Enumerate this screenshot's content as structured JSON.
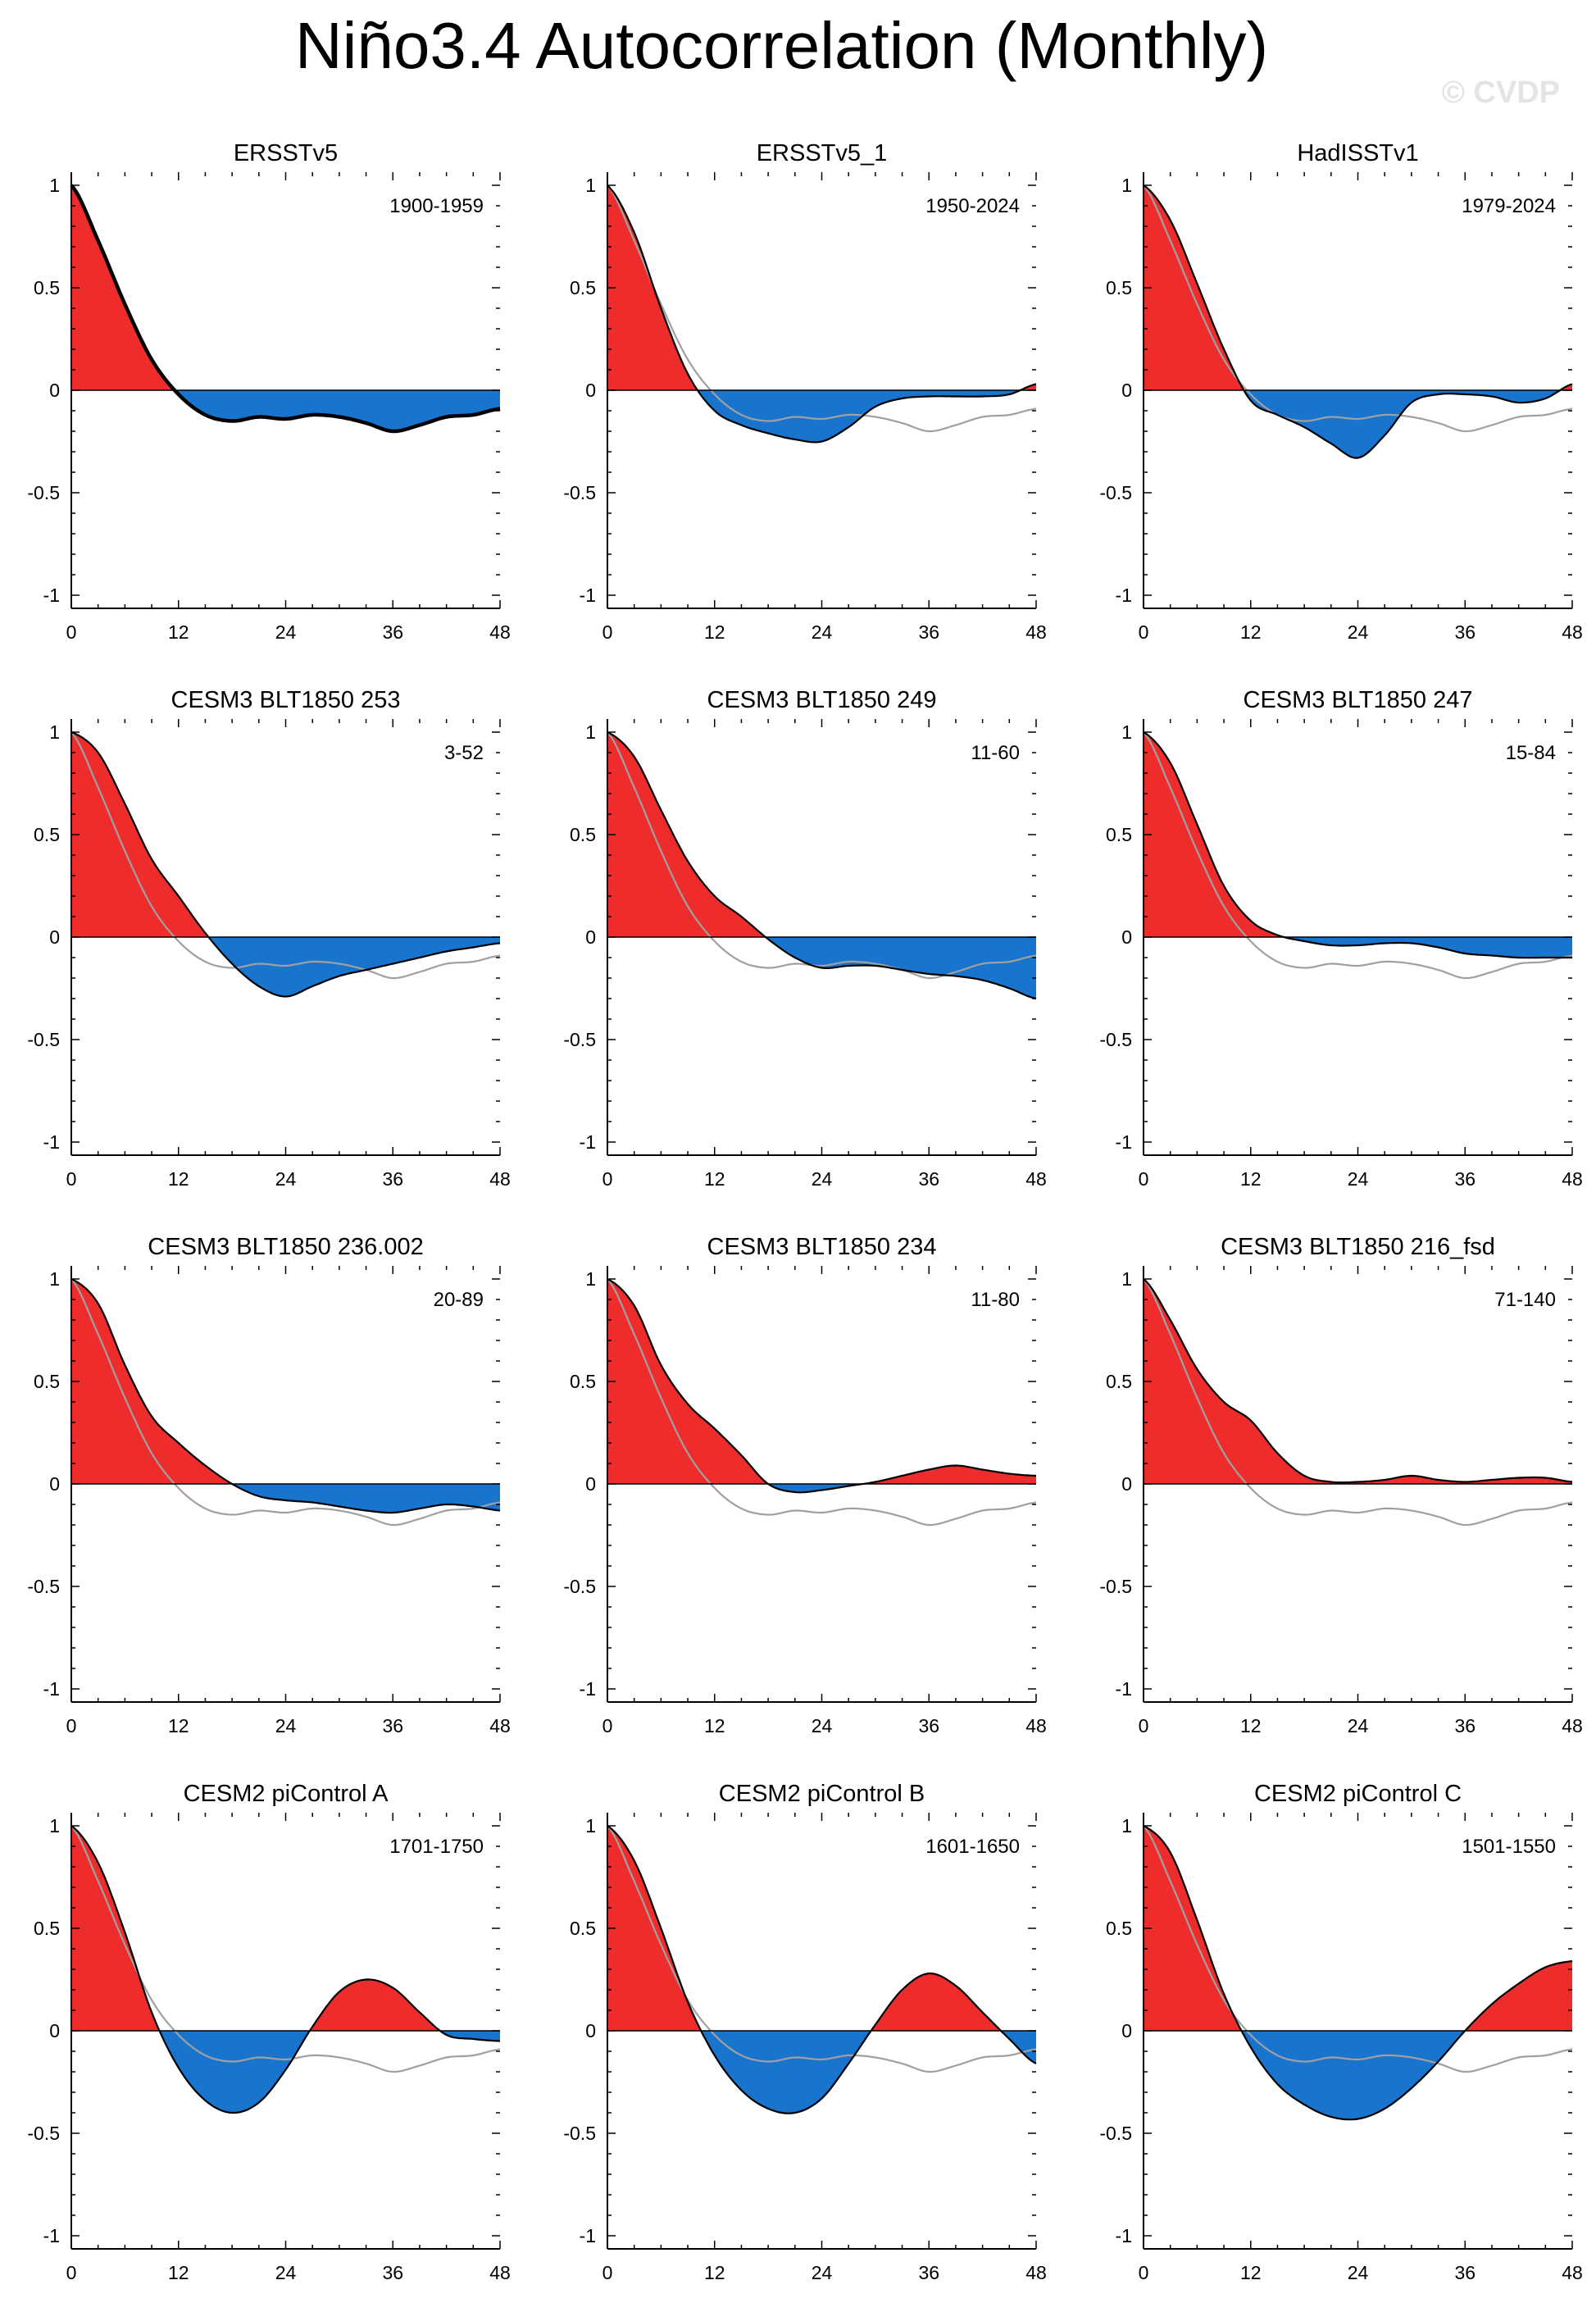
{
  "page": {
    "title": "Niño3.4 Autocorrelation (Monthly)",
    "watermark": "© CVDP"
  },
  "colors": {
    "positive_fill": "#ee2c2c",
    "negative_fill": "#1874cd",
    "line": "#000000",
    "reference_line": "#a0a0a0"
  },
  "axes": {
    "x_ticks": [
      0,
      12,
      24,
      36,
      48
    ],
    "y_ticks": [
      1,
      0.5,
      0,
      -0.5,
      -1
    ],
    "y_tick_labels": [
      "1",
      "0.5",
      "0",
      "-0.5",
      "-1"
    ],
    "xlim": [
      0,
      48
    ],
    "ylim": [
      -1,
      1
    ]
  },
  "chart_data": {
    "type": "area",
    "x": [
      0,
      3,
      6,
      9,
      12,
      15,
      18,
      21,
      24,
      27,
      30,
      33,
      36,
      39,
      42,
      45,
      48
    ],
    "reference": {
      "name": "ERSSTv5",
      "values": [
        1.0,
        0.73,
        0.42,
        0.15,
        -0.02,
        -0.12,
        -0.15,
        -0.13,
        -0.14,
        -0.12,
        -0.13,
        -0.16,
        -0.2,
        -0.17,
        -0.13,
        -0.12,
        -0.09
      ]
    },
    "panels": [
      {
        "title": "ERSSTv5",
        "period": "1900-1959",
        "values": [
          1.0,
          0.73,
          0.42,
          0.15,
          -0.02,
          -0.12,
          -0.15,
          -0.13,
          -0.14,
          -0.12,
          -0.13,
          -0.16,
          -0.2,
          -0.17,
          -0.13,
          -0.12,
          -0.09
        ]
      },
      {
        "title": "ERSSTv5_1",
        "period": "1950-2024",
        "values": [
          1.0,
          0.77,
          0.4,
          0.08,
          -0.1,
          -0.17,
          -0.21,
          -0.24,
          -0.25,
          -0.18,
          -0.08,
          -0.04,
          -0.03,
          -0.03,
          -0.03,
          -0.02,
          0.03
        ]
      },
      {
        "title": "HadISSTv1",
        "period": "1979-2024",
        "values": [
          1.0,
          0.83,
          0.52,
          0.2,
          -0.05,
          -0.12,
          -0.18,
          -0.26,
          -0.33,
          -0.22,
          -0.06,
          -0.02,
          -0.02,
          -0.03,
          -0.06,
          -0.04,
          0.03
        ]
      },
      {
        "title": "CESM3 BLT1850 253",
        "period": "3-52",
        "values": [
          1.0,
          0.9,
          0.65,
          0.38,
          0.2,
          0.02,
          -0.13,
          -0.24,
          -0.29,
          -0.24,
          -0.19,
          -0.16,
          -0.13,
          -0.1,
          -0.07,
          -0.05,
          -0.03
        ]
      },
      {
        "title": "CESM3 BLT1850 249",
        "period": "11-60",
        "values": [
          1.0,
          0.88,
          0.62,
          0.37,
          0.2,
          0.1,
          -0.01,
          -0.1,
          -0.15,
          -0.14,
          -0.14,
          -0.16,
          -0.18,
          -0.19,
          -0.21,
          -0.25,
          -0.3
        ]
      },
      {
        "title": "CESM3 BLT1850 247",
        "period": "15-84",
        "values": [
          1.0,
          0.85,
          0.55,
          0.25,
          0.08,
          0.01,
          -0.02,
          -0.04,
          -0.04,
          -0.03,
          -0.03,
          -0.05,
          -0.08,
          -0.09,
          -0.1,
          -0.1,
          -0.1
        ]
      },
      {
        "title": "CESM3 BLT1850 236.002",
        "period": "20-89",
        "values": [
          1.0,
          0.88,
          0.58,
          0.33,
          0.2,
          0.09,
          0.0,
          -0.06,
          -0.08,
          -0.09,
          -0.11,
          -0.13,
          -0.14,
          -0.12,
          -0.1,
          -0.11,
          -0.13
        ]
      },
      {
        "title": "CESM3 BLT1850 234",
        "period": "11-80",
        "values": [
          1.0,
          0.87,
          0.58,
          0.39,
          0.27,
          0.14,
          0.0,
          -0.04,
          -0.03,
          -0.01,
          0.01,
          0.04,
          0.07,
          0.09,
          0.07,
          0.05,
          0.04
        ]
      },
      {
        "title": "CESM3 BLT1850 216_fsd",
        "period": "71-140",
        "values": [
          1.0,
          0.8,
          0.56,
          0.4,
          0.31,
          0.15,
          0.04,
          0.01,
          0.01,
          0.02,
          0.04,
          0.02,
          0.01,
          0.02,
          0.03,
          0.03,
          0.01
        ]
      },
      {
        "title": "CESM2 piControl A",
        "period": "1701-1750",
        "values": [
          1.0,
          0.82,
          0.48,
          0.09,
          -0.18,
          -0.34,
          -0.4,
          -0.35,
          -0.19,
          0.02,
          0.19,
          0.25,
          0.21,
          0.09,
          -0.02,
          -0.04,
          -0.05
        ]
      },
      {
        "title": "CESM2 piControl B",
        "period": "1601-1650",
        "values": [
          1.0,
          0.83,
          0.5,
          0.14,
          -0.12,
          -0.29,
          -0.38,
          -0.4,
          -0.33,
          -0.16,
          0.03,
          0.2,
          0.28,
          0.22,
          0.09,
          -0.04,
          -0.16
        ]
      },
      {
        "title": "CESM2 piControl C",
        "period": "1501-1550",
        "values": [
          1.0,
          0.87,
          0.54,
          0.18,
          -0.08,
          -0.26,
          -0.36,
          -0.42,
          -0.43,
          -0.38,
          -0.28,
          -0.15,
          0.0,
          0.13,
          0.23,
          0.31,
          0.34
        ]
      }
    ]
  }
}
